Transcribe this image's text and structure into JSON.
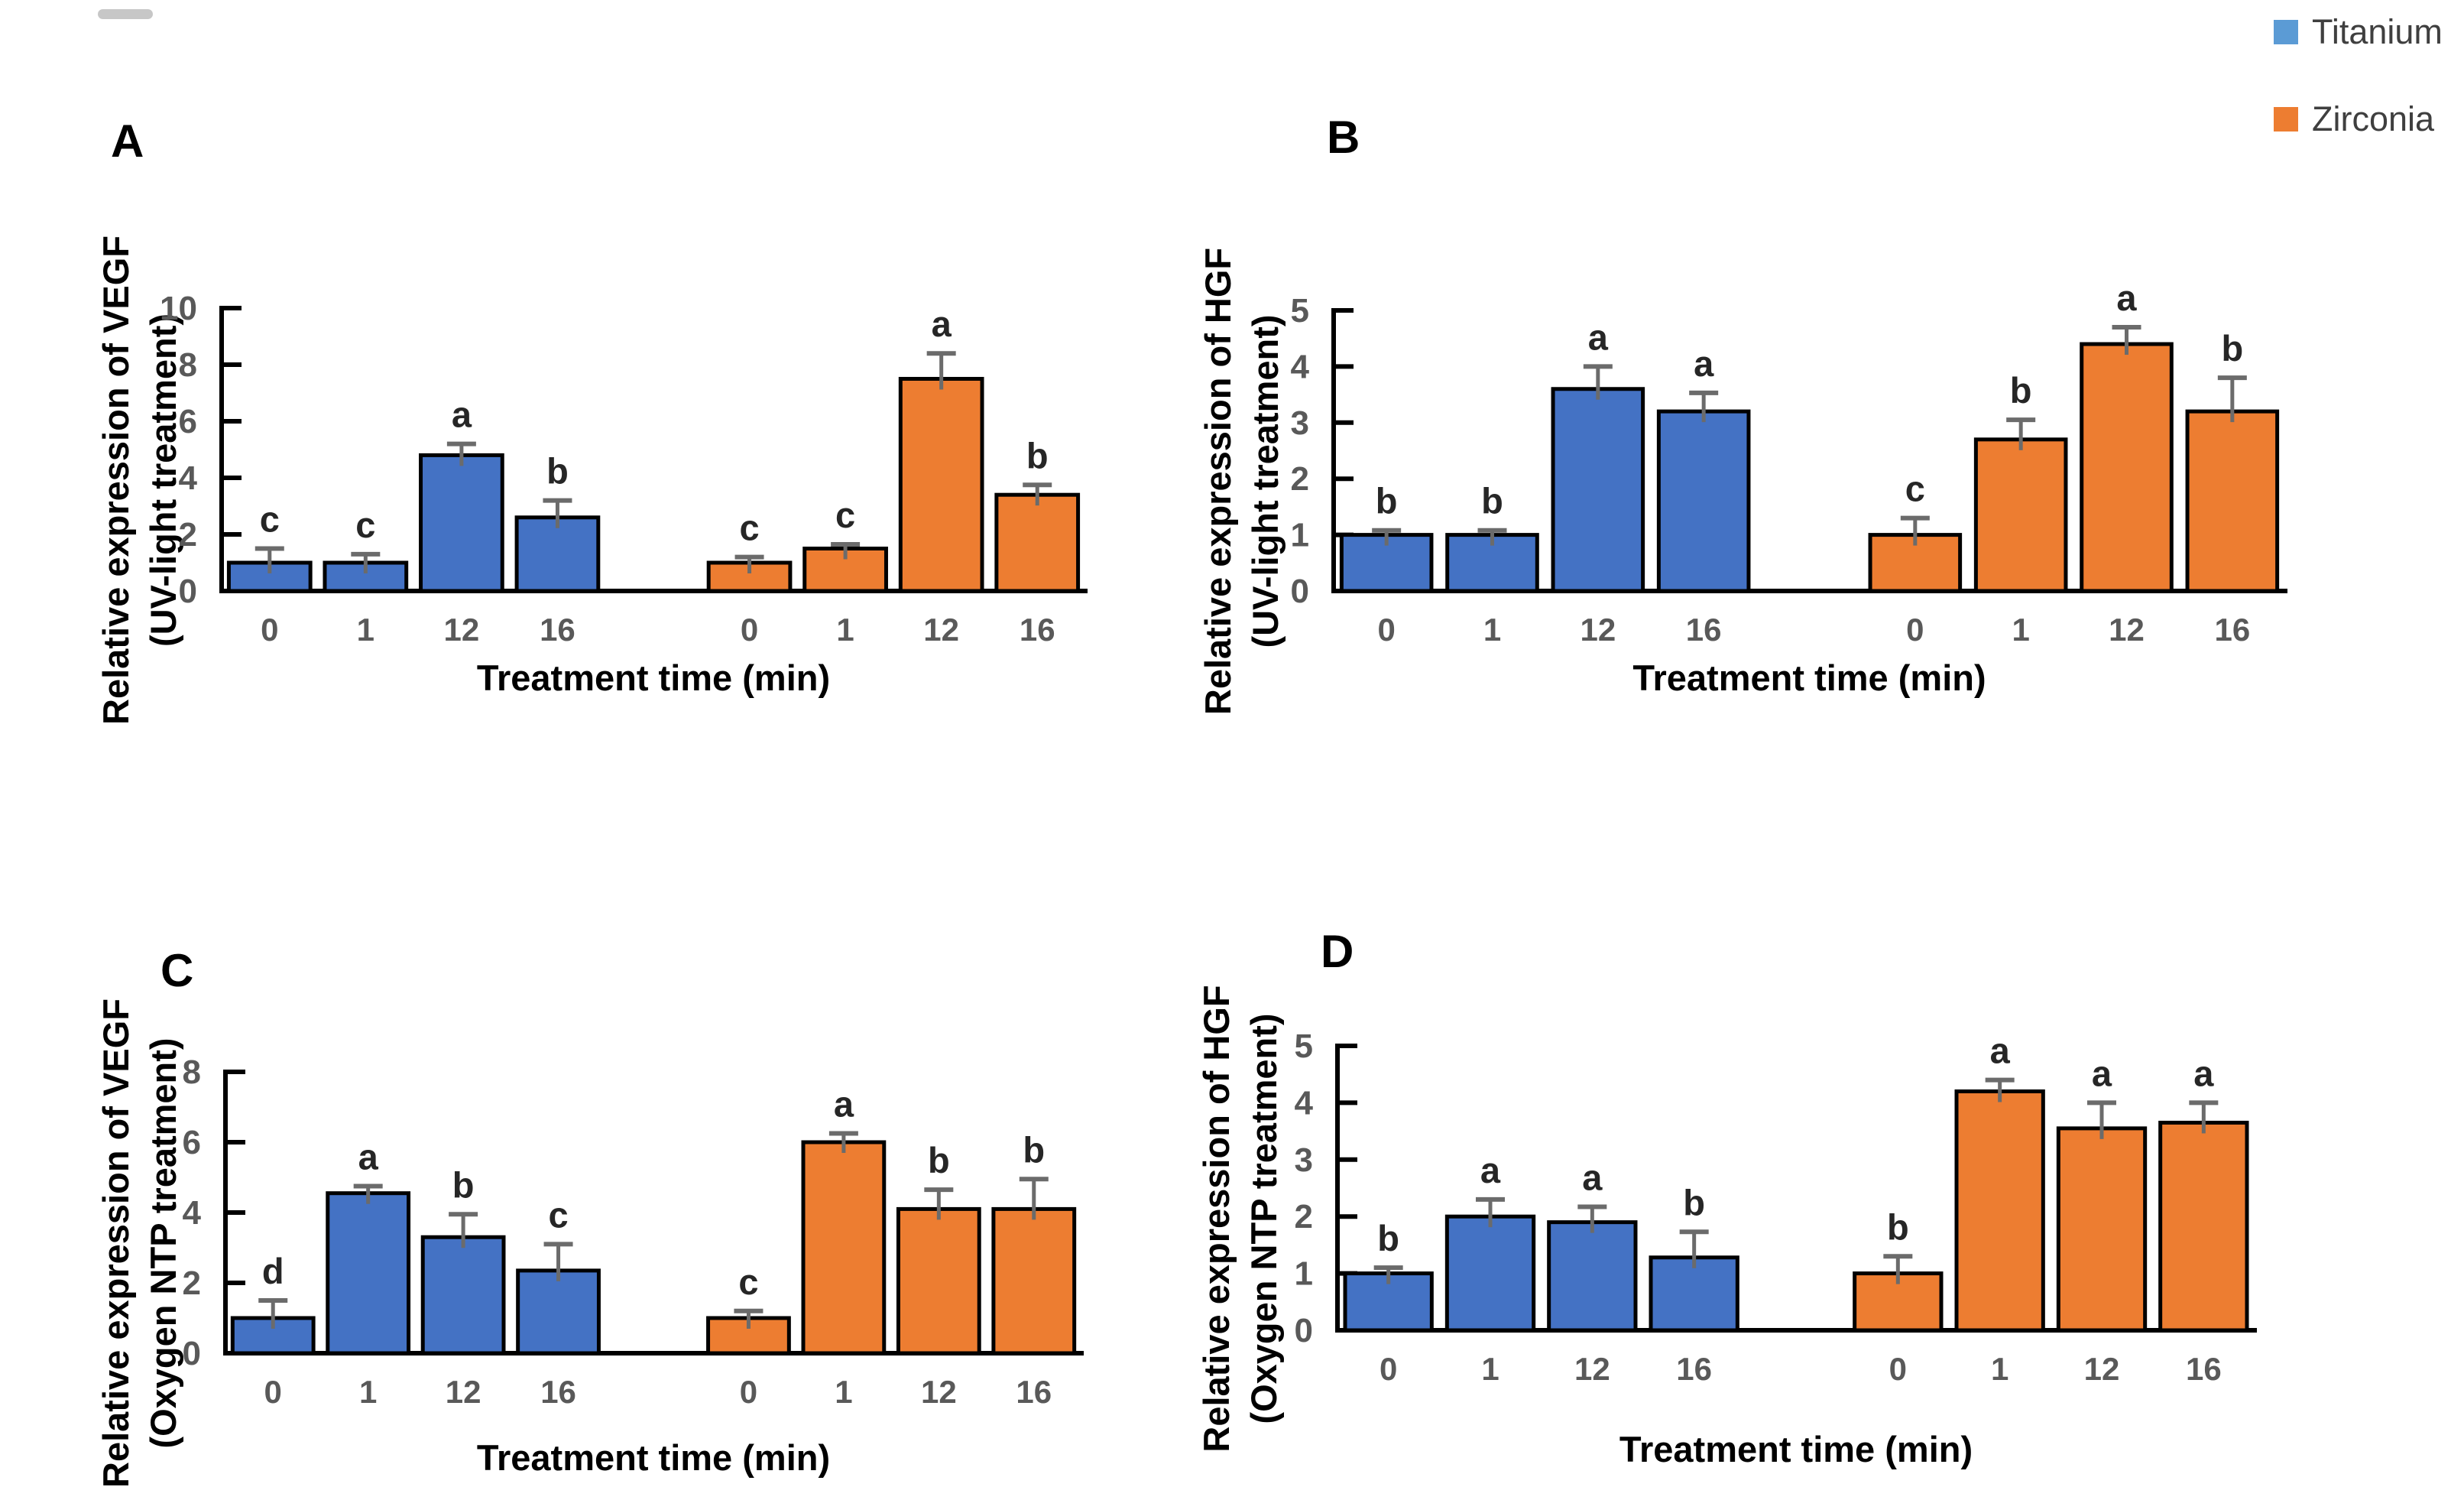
{
  "legend": {
    "items": [
      {
        "label": "Titanium",
        "color": "#5B9BD5"
      },
      {
        "label": "Zirconia",
        "color": "#ED7D31"
      }
    ]
  },
  "chart_data": {
    "type": "bar",
    "categories": [
      "0",
      "1",
      "12",
      "16"
    ],
    "xlabel": "Treatment time (min)",
    "grid": false,
    "legend_position": "top-right",
    "series_colors": {
      "Titanium": "#4472C4",
      "Zirconia": "#ED7D31"
    },
    "error_bar_color": "#6b6b6b",
    "panels": [
      {
        "label": "A",
        "ylabel_line1": "Relative expression of VEGF",
        "ylabel_line2": "(UV-light treatment)",
        "ylim": [
          0,
          10
        ],
        "yticks": [
          0,
          2,
          4,
          6,
          8,
          10
        ],
        "series": [
          {
            "name": "Titanium",
            "values": [
              1.0,
              1.0,
              4.8,
              2.6
            ],
            "errors": [
              0.5,
              0.3,
              0.4,
              0.6
            ],
            "letters": [
              "c",
              "c",
              "a",
              "b"
            ]
          },
          {
            "name": "Zirconia",
            "values": [
              1.0,
              1.5,
              7.5,
              3.4
            ],
            "errors": [
              0.2,
              0.15,
              0.9,
              0.35
            ],
            "letters": [
              "c",
              "c",
              "a",
              "b"
            ]
          }
        ]
      },
      {
        "label": "B",
        "ylabel_line1": "Relative expression of HGF",
        "ylabel_line2": "(UV-light treatment)",
        "ylim": [
          0,
          5
        ],
        "yticks": [
          0,
          1,
          2,
          3,
          4,
          5
        ],
        "series": [
          {
            "name": "Titanium",
            "values": [
              1.0,
              1.0,
              3.6,
              3.2
            ],
            "errors": [
              0.08,
              0.08,
              0.4,
              0.33
            ],
            "letters": [
              "b",
              "b",
              "a",
              "a"
            ]
          },
          {
            "name": "Zirconia",
            "values": [
              1.0,
              2.7,
              4.4,
              3.2
            ],
            "errors": [
              0.3,
              0.35,
              0.3,
              0.6
            ],
            "letters": [
              "c",
              "b",
              "a",
              "b"
            ]
          }
        ]
      },
      {
        "label": "C",
        "ylabel_line1": "Relative expression of VEGF",
        "ylabel_line2": "(Oxygen NTP treatment)",
        "ylim": [
          0,
          8
        ],
        "yticks": [
          0,
          2,
          4,
          6,
          8
        ],
        "series": [
          {
            "name": "Titanium",
            "values": [
              1.0,
              4.55,
              3.3,
              2.35
            ],
            "errors": [
              0.5,
              0.2,
              0.65,
              0.75
            ],
            "letters": [
              "d",
              "a",
              "b",
              "c"
            ]
          },
          {
            "name": "Zirconia",
            "values": [
              1.0,
              6.0,
              4.1,
              4.1
            ],
            "errors": [
              0.2,
              0.25,
              0.55,
              0.85
            ],
            "letters": [
              "c",
              "a",
              "b",
              "b"
            ]
          }
        ]
      },
      {
        "label": "D",
        "ylabel_line1": "Relative expression of HGF",
        "ylabel_line2": "(Oxygen NTP treatment)",
        "ylim": [
          0,
          5
        ],
        "yticks": [
          0,
          1,
          2,
          3,
          4,
          5
        ],
        "series": [
          {
            "name": "Titanium",
            "values": [
              1.0,
              2.0,
              1.9,
              1.28
            ],
            "errors": [
              0.1,
              0.3,
              0.27,
              0.45
            ],
            "letters": [
              "b",
              "a",
              "a",
              "b"
            ]
          },
          {
            "name": "Zirconia",
            "values": [
              1.0,
              4.2,
              3.55,
              3.65
            ],
            "errors": [
              0.3,
              0.2,
              0.45,
              0.35
            ],
            "letters": [
              "b",
              "a",
              "a",
              "a"
            ]
          }
        ]
      }
    ]
  }
}
